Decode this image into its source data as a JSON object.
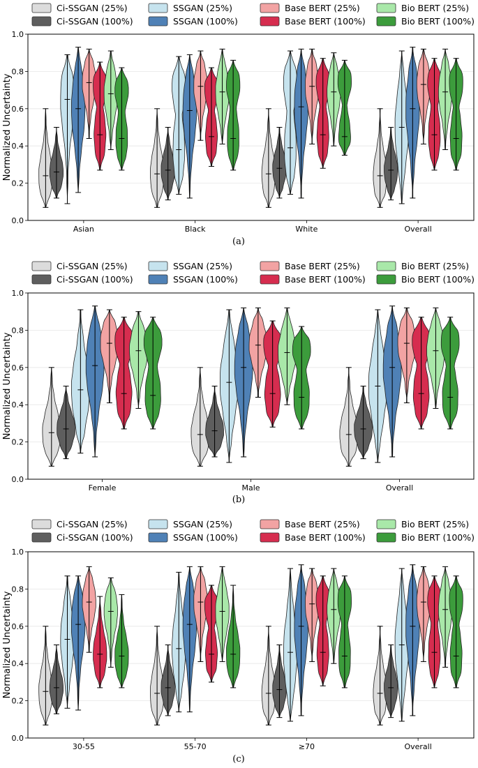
{
  "figure": {
    "captions": [
      "(a)",
      "(b)",
      "(c)"
    ]
  },
  "legend": {
    "entries": [
      {
        "label": "Ci-SSGAN (25%)",
        "color": "#dcdcdc"
      },
      {
        "label": "Ci-SSGAN (100%)",
        "color": "#5e5e5e"
      },
      {
        "label": "SSGAN (25%)",
        "color": "#c6e3ee"
      },
      {
        "label": "SSGAN (100%)",
        "color": "#4f81b6"
      },
      {
        "label": "Base BERT (25%)",
        "color": "#f2a3a3"
      },
      {
        "label": "Base BERT (100%)",
        "color": "#d62d4f"
      },
      {
        "label": "Bio BERT (25%)",
        "color": "#a9e8a9"
      },
      {
        "label": "Bio BERT (100%)",
        "color": "#3c9c3c"
      }
    ]
  },
  "chart_data": [
    {
      "type": "violin",
      "panel": "(a)",
      "ylabel": "Normalized Uncertainty",
      "ylim": [
        0.0,
        1.0
      ],
      "yticks": [
        "0.0",
        "0.2",
        "0.4",
        "0.6",
        "0.8",
        "1.0"
      ],
      "grid": true,
      "legend_position": "top",
      "categories": [
        "Asian",
        "Black",
        "White",
        "Overall"
      ],
      "series": [
        {
          "name": "Ci-SSGAN (25%)",
          "stats": [
            {
              "min": 0.07,
              "max": 0.6,
              "median": 0.24
            },
            {
              "min": 0.07,
              "max": 0.6,
              "median": 0.25
            },
            {
              "min": 0.07,
              "max": 0.6,
              "median": 0.25
            },
            {
              "min": 0.07,
              "max": 0.6,
              "median": 0.24
            }
          ]
        },
        {
          "name": "Ci-SSGAN (100%)",
          "stats": [
            {
              "min": 0.12,
              "max": 0.5,
              "median": 0.26
            },
            {
              "min": 0.11,
              "max": 0.5,
              "median": 0.27
            },
            {
              "min": 0.12,
              "max": 0.5,
              "median": 0.28
            },
            {
              "min": 0.11,
              "max": 0.5,
              "median": 0.27
            }
          ]
        },
        {
          "name": "SSGAN (25%)",
          "stats": [
            {
              "min": 0.09,
              "max": 0.89,
              "median": 0.65
            },
            {
              "min": 0.14,
              "max": 0.88,
              "median": 0.38
            },
            {
              "min": 0.14,
              "max": 0.91,
              "median": 0.39
            },
            {
              "min": 0.09,
              "max": 0.91,
              "median": 0.5
            }
          ]
        },
        {
          "name": "SSGAN (100%)",
          "stats": [
            {
              "min": 0.15,
              "max": 0.93,
              "median": 0.6
            },
            {
              "min": 0.12,
              "max": 0.89,
              "median": 0.59
            },
            {
              "min": 0.12,
              "max": 0.92,
              "median": 0.61
            },
            {
              "min": 0.12,
              "max": 0.93,
              "median": 0.6
            }
          ]
        },
        {
          "name": "Base BERT (25%)",
          "stats": [
            {
              "min": 0.44,
              "max": 0.92,
              "median": 0.74
            },
            {
              "min": 0.43,
              "max": 0.91,
              "median": 0.72
            },
            {
              "min": 0.41,
              "max": 0.92,
              "median": 0.72
            },
            {
              "min": 0.41,
              "max": 0.92,
              "median": 0.73
            }
          ]
        },
        {
          "name": "Base BERT (100%)",
          "stats": [
            {
              "min": 0.27,
              "max": 0.85,
              "median": 0.46
            },
            {
              "min": 0.29,
              "max": 0.82,
              "median": 0.45
            },
            {
              "min": 0.28,
              "max": 0.87,
              "median": 0.46
            },
            {
              "min": 0.27,
              "max": 0.87,
              "median": 0.46
            }
          ]
        },
        {
          "name": "Bio BERT (25%)",
          "stats": [
            {
              "min": 0.38,
              "max": 0.91,
              "median": 0.68
            },
            {
              "min": 0.41,
              "max": 0.92,
              "median": 0.69
            },
            {
              "min": 0.4,
              "max": 0.9,
              "median": 0.69
            },
            {
              "min": 0.38,
              "max": 0.92,
              "median": 0.69
            }
          ]
        },
        {
          "name": "Bio BERT (100%)",
          "stats": [
            {
              "min": 0.27,
              "max": 0.82,
              "median": 0.44
            },
            {
              "min": 0.27,
              "max": 0.86,
              "median": 0.44
            },
            {
              "min": 0.35,
              "max": 0.86,
              "median": 0.45
            },
            {
              "min": 0.27,
              "max": 0.87,
              "median": 0.44
            }
          ]
        }
      ]
    },
    {
      "type": "violin",
      "panel": "(b)",
      "ylabel": "Normalized Uncertainty",
      "ylim": [
        0.0,
        1.0
      ],
      "yticks": [
        "0.0",
        "0.2",
        "0.4",
        "0.6",
        "0.8",
        "1.0"
      ],
      "grid": true,
      "legend_position": "top",
      "categories": [
        "Female",
        "Male",
        "Overall"
      ],
      "series": [
        {
          "name": "Ci-SSGAN (25%)",
          "stats": [
            {
              "min": 0.07,
              "max": 0.6,
              "median": 0.25
            },
            {
              "min": 0.07,
              "max": 0.6,
              "median": 0.24
            },
            {
              "min": 0.07,
              "max": 0.6,
              "median": 0.24
            }
          ]
        },
        {
          "name": "Ci-SSGAN (100%)",
          "stats": [
            {
              "min": 0.11,
              "max": 0.5,
              "median": 0.27
            },
            {
              "min": 0.12,
              "max": 0.5,
              "median": 0.26
            },
            {
              "min": 0.11,
              "max": 0.5,
              "median": 0.27
            }
          ]
        },
        {
          "name": "SSGAN (25%)",
          "stats": [
            {
              "min": 0.14,
              "max": 0.91,
              "median": 0.48
            },
            {
              "min": 0.09,
              "max": 0.91,
              "median": 0.52
            },
            {
              "min": 0.09,
              "max": 0.91,
              "median": 0.5
            }
          ]
        },
        {
          "name": "SSGAN (100%)",
          "stats": [
            {
              "min": 0.12,
              "max": 0.93,
              "median": 0.61
            },
            {
              "min": 0.12,
              "max": 0.92,
              "median": 0.6
            },
            {
              "min": 0.12,
              "max": 0.93,
              "median": 0.6
            }
          ]
        },
        {
          "name": "Base BERT (25%)",
          "stats": [
            {
              "min": 0.41,
              "max": 0.91,
              "median": 0.73
            },
            {
              "min": 0.44,
              "max": 0.92,
              "median": 0.72
            },
            {
              "min": 0.41,
              "max": 0.92,
              "median": 0.73
            }
          ]
        },
        {
          "name": "Base BERT (100%)",
          "stats": [
            {
              "min": 0.27,
              "max": 0.87,
              "median": 0.46
            },
            {
              "min": 0.28,
              "max": 0.85,
              "median": 0.46
            },
            {
              "min": 0.27,
              "max": 0.87,
              "median": 0.46
            }
          ]
        },
        {
          "name": "Bio BERT (25%)",
          "stats": [
            {
              "min": 0.38,
              "max": 0.9,
              "median": 0.69
            },
            {
              "min": 0.4,
              "max": 0.92,
              "median": 0.68
            },
            {
              "min": 0.38,
              "max": 0.92,
              "median": 0.69
            }
          ]
        },
        {
          "name": "Bio BERT (100%)",
          "stats": [
            {
              "min": 0.27,
              "max": 0.87,
              "median": 0.45
            },
            {
              "min": 0.27,
              "max": 0.82,
              "median": 0.44
            },
            {
              "min": 0.27,
              "max": 0.87,
              "median": 0.44
            }
          ]
        }
      ]
    },
    {
      "type": "violin",
      "panel": "(c)",
      "ylabel": "Normalized Uncertainty",
      "ylim": [
        0.0,
        1.0
      ],
      "yticks": [
        "0.0",
        "0.2",
        "0.4",
        "0.6",
        "0.8",
        "1.0"
      ],
      "grid": true,
      "legend_position": "top",
      "categories": [
        "30-55",
        "55-70",
        "≥70",
        "Overall"
      ],
      "series": [
        {
          "name": "Ci-SSGAN (25%)",
          "stats": [
            {
              "min": 0.07,
              "max": 0.6,
              "median": 0.25
            },
            {
              "min": 0.07,
              "max": 0.6,
              "median": 0.24
            },
            {
              "min": 0.07,
              "max": 0.6,
              "median": 0.24
            },
            {
              "min": 0.07,
              "max": 0.6,
              "median": 0.24
            }
          ]
        },
        {
          "name": "Ci-SSGAN (100%)",
          "stats": [
            {
              "min": 0.13,
              "max": 0.5,
              "median": 0.27
            },
            {
              "min": 0.12,
              "max": 0.5,
              "median": 0.27
            },
            {
              "min": 0.11,
              "max": 0.5,
              "median": 0.26
            },
            {
              "min": 0.11,
              "max": 0.5,
              "median": 0.27
            }
          ]
        },
        {
          "name": "SSGAN (25%)",
          "stats": [
            {
              "min": 0.16,
              "max": 0.87,
              "median": 0.53
            },
            {
              "min": 0.14,
              "max": 0.89,
              "median": 0.48
            },
            {
              "min": 0.09,
              "max": 0.91,
              "median": 0.46
            },
            {
              "min": 0.09,
              "max": 0.91,
              "median": 0.5
            }
          ]
        },
        {
          "name": "SSGAN (100%)",
          "stats": [
            {
              "min": 0.15,
              "max": 0.87,
              "median": 0.61
            },
            {
              "min": 0.14,
              "max": 0.92,
              "median": 0.61
            },
            {
              "min": 0.12,
              "max": 0.93,
              "median": 0.6
            },
            {
              "min": 0.12,
              "max": 0.93,
              "median": 0.6
            }
          ]
        },
        {
          "name": "Base BERT (25%)",
          "stats": [
            {
              "min": 0.46,
              "max": 0.92,
              "median": 0.73
            },
            {
              "min": 0.41,
              "max": 0.92,
              "median": 0.73
            },
            {
              "min": 0.41,
              "max": 0.91,
              "median": 0.72
            },
            {
              "min": 0.41,
              "max": 0.92,
              "median": 0.73
            }
          ]
        },
        {
          "name": "Base BERT (100%)",
          "stats": [
            {
              "min": 0.27,
              "max": 0.76,
              "median": 0.45
            },
            {
              "min": 0.3,
              "max": 0.82,
              "median": 0.45
            },
            {
              "min": 0.28,
              "max": 0.87,
              "median": 0.46
            },
            {
              "min": 0.27,
              "max": 0.87,
              "median": 0.46
            }
          ]
        },
        {
          "name": "Bio BERT (25%)",
          "stats": [
            {
              "min": 0.38,
              "max": 0.86,
              "median": 0.68
            },
            {
              "min": 0.41,
              "max": 0.92,
              "median": 0.68
            },
            {
              "min": 0.4,
              "max": 0.91,
              "median": 0.69
            },
            {
              "min": 0.38,
              "max": 0.92,
              "median": 0.69
            }
          ]
        },
        {
          "name": "Bio BERT (100%)",
          "stats": [
            {
              "min": 0.27,
              "max": 0.77,
              "median": 0.44
            },
            {
              "min": 0.27,
              "max": 0.82,
              "median": 0.45
            },
            {
              "min": 0.27,
              "max": 0.87,
              "median": 0.44
            },
            {
              "min": 0.27,
              "max": 0.87,
              "median": 0.44
            }
          ]
        }
      ]
    }
  ]
}
